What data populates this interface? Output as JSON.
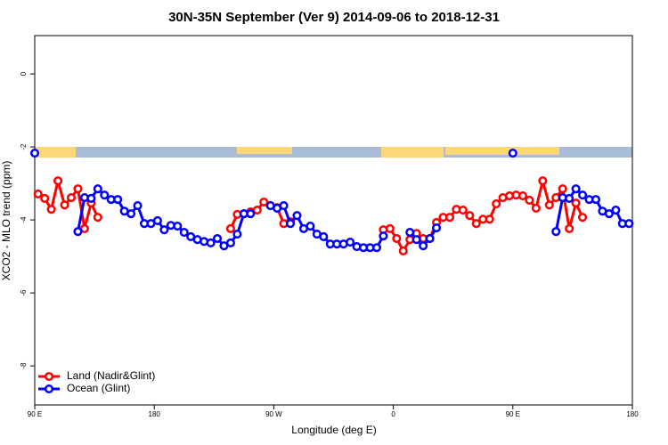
{
  "chart_data": {
    "type": "line",
    "title": "30N-35N September (Ver 9)   2014-09-06 to 2018-12-31",
    "xlabel": "Longitude (deg E)",
    "ylabel": "XCO2 - MLO trend (ppm)",
    "xlim": [
      90,
      540
    ],
    "xticks": [
      {
        "value": 90,
        "label": "90 E"
      },
      180,
      {
        "value": 270,
        "label": "90 W"
      },
      {
        "value": 360,
        "label": "0"
      },
      {
        "value": 450,
        "label": "90 E"
      },
      {
        "value": 540,
        "label": "180"
      }
    ],
    "ylim": [
      -9.07,
      1.05
    ],
    "yticks": [
      0,
      -2,
      -4,
      -6,
      -8
    ],
    "legend": "bottom-left",
    "series": [
      {
        "name": "Land (Nadir&Glint)",
        "color": "#ff0000",
        "x": [
          92.5,
          97.5,
          102.5,
          107.5,
          112.5,
          117.5,
          122.5,
          127.5,
          132.5,
          137.5,
          null,
          237.5,
          242.5,
          247.5,
          252.5,
          257.5,
          262.5,
          267.5,
          272.5,
          277.5,
          282.5,
          null,
          352.5,
          357.5,
          362.5,
          367.5,
          372.5,
          377.5,
          382.5,
          387.5,
          392.5,
          397.5,
          402.5,
          407.5,
          412.5,
          417.5,
          422.5,
          427.5,
          432.5,
          437.5,
          442.5,
          447.5,
          452.5,
          457.5,
          462.5,
          467.5,
          472.5,
          477.5,
          482.5,
          487.5,
          492.5,
          497.5,
          502.5
        ],
        "values": [
          -3.29,
          -3.41,
          -3.71,
          -2.93,
          -3.59,
          -3.39,
          -3.15,
          -4.24,
          -3.54,
          -3.93,
          null,
          -4.24,
          -3.85,
          -3.83,
          -3.78,
          -3.73,
          -3.51,
          -3.61,
          -3.66,
          -4.1,
          -4.05,
          null,
          -4.27,
          -4.24,
          -4.51,
          -4.85,
          -4.54,
          -4.37,
          -4.51,
          -4.51,
          -4.07,
          -3.93,
          -3.93,
          -3.71,
          -3.73,
          -3.88,
          -4.1,
          -3.98,
          -3.98,
          -3.56,
          -3.39,
          -3.34,
          -3.32,
          -3.34,
          -3.46,
          -3.68,
          -2.93,
          -3.59,
          -3.39,
          -3.15,
          -4.24,
          -3.54,
          -3.93
        ]
      },
      {
        "name": "Ocean (Glint)",
        "color": "#0000ff",
        "x": [
          90,
          null,
          122.5,
          127.5,
          132.5,
          137.5,
          142.5,
          147.5,
          152.5,
          157.5,
          162.5,
          167.5,
          172.5,
          177.5,
          182.5,
          187.5,
          192.5,
          197.5,
          202.5,
          207.5,
          212.5,
          217.5,
          222.5,
          227.5,
          232.5,
          237.5,
          242.5,
          247.5,
          252.5,
          null,
          267.5,
          272.5,
          277.5,
          282.5,
          287.5,
          292.5,
          297.5,
          302.5,
          307.5,
          312.5,
          317.5,
          322.5,
          327.5,
          332.5,
          337.5,
          342.5,
          347.5,
          352.5,
          null,
          372.5,
          377.5,
          382.5,
          387.5,
          392.5,
          null,
          450,
          null,
          482.5,
          487.5,
          492.5,
          497.5,
          502.5,
          507.5,
          512.5,
          517.5,
          522.5,
          527.5,
          532.5,
          537.5
        ],
        "values": [
          -2.17,
          null,
          -4.32,
          -3.39,
          -3.41,
          -3.15,
          -3.32,
          -3.44,
          -3.44,
          -3.76,
          -3.83,
          -3.61,
          -4.1,
          -4.1,
          -4.02,
          -4.27,
          -4.15,
          -4.17,
          -4.34,
          -4.46,
          -4.54,
          -4.59,
          -4.63,
          -4.51,
          -4.71,
          -4.63,
          -4.39,
          -3.83,
          -3.83,
          null,
          -3.61,
          -3.68,
          -3.61,
          -4.1,
          -3.88,
          -4.24,
          -4.17,
          -4.39,
          -4.46,
          -4.66,
          -4.66,
          -4.66,
          -4.61,
          -4.73,
          -4.76,
          -4.76,
          -4.76,
          -4.44,
          null,
          -4.34,
          -4.54,
          -4.71,
          -4.51,
          -4.22,
          null,
          -2.17,
          null,
          -4.32,
          -3.39,
          -3.41,
          -3.15,
          -3.32,
          -3.44,
          -3.44,
          -3.76,
          -3.83,
          -3.73,
          -4.1,
          -4.1
        ]
      }
    ]
  }
}
